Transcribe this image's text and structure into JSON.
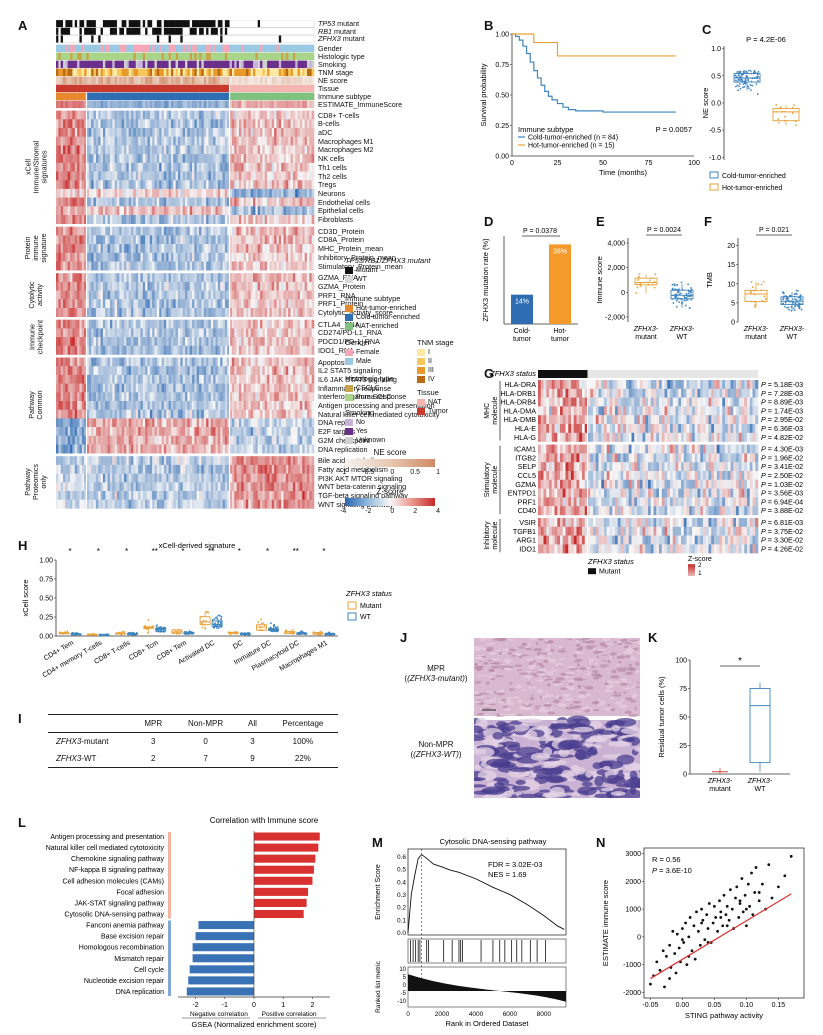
{
  "panels": {
    "A": "A",
    "B": "B",
    "C": "C",
    "D": "D",
    "E": "E",
    "F": "F",
    "G": "G",
    "H": "H",
    "I": "I",
    "J": "J",
    "K": "K",
    "L": "L",
    "M": "M",
    "N": "N"
  },
  "heatmapA": {
    "annotation_rows": [
      "TP53 mutant",
      "RB1 mutant",
      "ZFHX3 mutant",
      "Gender",
      "Histologic type",
      "Smoking",
      "TNM stage",
      "NE score",
      "Tissue",
      "Immune subtype",
      "ESTIMATE_ImmuneScore"
    ],
    "groups": [
      {
        "label": "xCell Immune/Stromal signatures",
        "rows": [
          "CD8+ T-cells",
          "B-cells",
          "aDC",
          "Macrophages M1",
          "Macrophages M2",
          "NK cells",
          "Th1 cells",
          "Th2 cells",
          "Tregs",
          "Neurons",
          "Endothelial cells",
          "Epithelial cells",
          "Fibroblasts"
        ]
      },
      {
        "label": "Protein immune signature",
        "rows": [
          "CD3D_Protein",
          "CD8A_Protein",
          "MHC_Protein_mean",
          "Inhibitory_Protein_mean",
          "Stimulatory_Protein_mean"
        ]
      },
      {
        "label": "Cytolytic activity",
        "rows": [
          "GZMA_RNA",
          "GZMA_Protein",
          "PRF1_RNA",
          "PRF1_Protein",
          "Cytolytic_activity_score"
        ]
      },
      {
        "label": "Immune checkpoint",
        "rows": [
          "CTLA4_RNA",
          "CD274/PD-L1_RNA",
          "PDCD1/PD-1_RNA",
          "IDO1_RNA"
        ]
      },
      {
        "label": "Pathway Common",
        "rows": [
          "Apoptosis",
          "IL2 STAT5 signaling",
          "IL6 JAK STAT3 signaling",
          "Inflammatory response",
          "Interferon gamma response",
          "Antigen processing and presentation",
          "Natural killer cell mediated cytotoxicity",
          "DNA repair",
          "E2F targets",
          "G2M checkpoint",
          "DNA replication"
        ]
      },
      {
        "label": "Pathway Proteomics only",
        "rows": [
          "Bile acid metabolism",
          "Fatty acid metabolism",
          "PI3K AKT MTOR signaling",
          "WNT beta-catenin signaling",
          "TGF-beta signaling pathway",
          "WNT signaling pathway"
        ]
      }
    ],
    "legend": {
      "mut_title": "TP53/RB1/ZFHX3 mutant",
      "mut_items": [
        {
          "label": "Mutant",
          "color": "#111111"
        },
        {
          "label": "WT",
          "color": "#d9d9d9"
        }
      ],
      "immune_title": "Immune subtype",
      "immune_items": [
        {
          "label": "Hot-tumor-enriched",
          "color": "#e8882e"
        },
        {
          "label": "Cold-tumor-enriched",
          "color": "#2f6db3"
        },
        {
          "label": "NAT-enriched",
          "color": "#7fc27f"
        }
      ],
      "gender_title": "Gender",
      "gender_items": [
        {
          "label": "Female",
          "color": "#f4a7b9"
        },
        {
          "label": "Male",
          "color": "#9ac9e3"
        }
      ],
      "tnm_title": "TNM stage",
      "tnm_items": [
        {
          "label": "I",
          "color": "#fde9a3"
        },
        {
          "label": "II",
          "color": "#f8c75a"
        },
        {
          "label": "III",
          "color": "#e79a2a"
        },
        {
          "label": "IV",
          "color": "#b86a14"
        }
      ],
      "hist_title": "Histologic type",
      "hist_items": [
        {
          "label": "CSCLC",
          "color": "#c9a34a"
        },
        {
          "label": "Pure SCLC",
          "color": "#a8d58a"
        }
      ],
      "tissue_title": "Tissue",
      "tissue_items": [
        {
          "label": "NAT",
          "color": "#f4b4b0"
        },
        {
          "label": "Tumor",
          "color": "#c83a2e"
        }
      ],
      "smoking_title": "Smoking",
      "smoking_items": [
        {
          "label": "No",
          "color": "#c7b3d8"
        },
        {
          "label": "Yes",
          "color": "#6a2f8a"
        },
        {
          "label": "Unknown",
          "color": "#cfcfcf"
        }
      ],
      "ne_title": "NE score",
      "ne_ticks": [
        "-1",
        "-0.5",
        "0",
        "0.5",
        "1"
      ],
      "z_title": "Z-score",
      "z_ticks": [
        "-4",
        "-2",
        "0",
        "2",
        "4"
      ]
    }
  },
  "panelB": {
    "ylabel": "Survival probability",
    "xlabel": "Time (months)",
    "yticks": [
      "0.00",
      "0.25",
      "0.50",
      "0.75",
      "1.00"
    ],
    "xticks": [
      "0",
      "25",
      "50",
      "75",
      "100"
    ],
    "legend_title": "Immune subtype",
    "legend": [
      "Cold-tumor-enriched (n = 84)",
      "Hot-tumor-enriched (n = 15)"
    ],
    "pvalue": "P = 0.0057"
  },
  "panelC": {
    "ylabel": "NE score",
    "yticks": [
      "1.0",
      "0.5",
      "0.0",
      "-0.5",
      "-1.0"
    ],
    "pvalue": "P = 4.2E-06",
    "legend": [
      "Cold-tumor-enriched",
      "Hot-tumor-enriched"
    ]
  },
  "panelD": {
    "ylabel": "ZFHX3 mutation rate (%)",
    "pvalue": "P = 0.0378",
    "categories": [
      "Cold-tumor",
      "Hot-tumor"
    ],
    "values": [
      14,
      38
    ],
    "value_labels": [
      "14%",
      "38%"
    ]
  },
  "panelE": {
    "ylabel": "Immune score",
    "yticks": [
      "4,000",
      "2,000",
      "0",
      "-2,000"
    ],
    "pvalue": "P = 0.0024",
    "categories": [
      "ZFHX3-mutant",
      "ZFHX3-WT"
    ]
  },
  "panelF": {
    "ylabel": "TMB",
    "yticks": [
      "20",
      "15",
      "10",
      "5",
      "0"
    ],
    "pvalue": "P = 0.021",
    "categories": [
      "ZFHX3-mutant",
      "ZFHX3-WT"
    ]
  },
  "panelG": {
    "status_label": "ZFHX3 status",
    "groups": [
      {
        "label": "MHC molecule",
        "rows": [
          [
            "HLA-DRA",
            "P = 5.18E-03"
          ],
          [
            "HLA-DRB1",
            "P = 7.28E-03"
          ],
          [
            "HLA-DRB4",
            "P = 8.89E-03"
          ],
          [
            "HLA-DMA",
            "P = 1.74E-03"
          ],
          [
            "HLA-DMB",
            "P = 2.95E-02"
          ],
          [
            "HLA-E",
            "P = 6.36E-03"
          ],
          [
            "HLA-G",
            "P = 4.82E-02"
          ]
        ]
      },
      {
        "label": "Stimulatory molecule",
        "rows": [
          [
            "ICAM1",
            "P = 4.30E-03"
          ],
          [
            "ITGB2",
            "P = 1.96E-02"
          ],
          [
            "SELP",
            "P = 3.41E-02"
          ],
          [
            "CCL5",
            "P = 2.50E-02"
          ],
          [
            "GZMA",
            "P = 1.03E-02"
          ],
          [
            "ENTPD1",
            "P = 3.56E-03"
          ],
          [
            "PRF1",
            "P = 6.94E-04"
          ],
          [
            "CD40",
            "P = 3.88E-02"
          ]
        ]
      },
      {
        "label": "Inhibitory molecule",
        "rows": [
          [
            "VSIR",
            "P = 6.81E-03"
          ],
          [
            "TGFB1",
            "P = 3.75E-02"
          ],
          [
            "ARG1",
            "P = 3.30E-02"
          ],
          [
            "IDO1",
            "P = 4.26E-02"
          ]
        ]
      }
    ],
    "legend_title": "ZFHX3 status",
    "legend": [
      "Mutant",
      "WT"
    ],
    "z_title": "Z-score",
    "z_ticks": [
      "2",
      "1",
      "0",
      "-1",
      "-2"
    ]
  },
  "panelH": {
    "title": "xCell-derived signature",
    "ylabel": "xCell score",
    "yticks": [
      "1.00",
      "0.75",
      "0.50",
      "0.25",
      "0.00"
    ],
    "categories": [
      "CD4+ Tem",
      "CD4+ memory T-cells",
      "CD8+ T-cells",
      "CD8+ Tcm",
      "CD8+ Tem",
      "Activated DC",
      "DC",
      "Immature DC",
      "Plasmacytoid DC",
      "Macrophages M1"
    ],
    "signif": [
      "*",
      "*",
      "*",
      "**",
      "*",
      "**",
      "*",
      "*",
      "**",
      "*"
    ],
    "legend_title": "ZFHX3 status",
    "legend": [
      "Mutant",
      "WT"
    ]
  },
  "panelI": {
    "headers": [
      "",
      "MPR",
      "Non-MPR",
      "All",
      "Percentage"
    ],
    "rows": [
      [
        "ZFHX3-mutant",
        "3",
        "0",
        "3",
        "100%"
      ],
      [
        "ZFHX3-WT",
        "2",
        "7",
        "9",
        "22%"
      ]
    ]
  },
  "panelJ": {
    "labels": [
      "MPR",
      "(ZFHX3-mutant)",
      "Non-MPR",
      "(ZFHX3-WT)"
    ]
  },
  "panelK": {
    "ylabel": "Residual tumor cells (%)",
    "yticks": [
      "100",
      "75",
      "50",
      "25",
      "0"
    ],
    "categories": [
      "ZFHX3-mutant",
      "ZFHX3-WT"
    ],
    "signif": "*"
  },
  "panelL": {
    "title": "Correlation with Immune score",
    "xlabel": "GSEA (Normalized enrichment score)",
    "xticks": [
      "-2",
      "-1",
      "0",
      "1",
      "2"
    ],
    "neg_label": "Negative correlation",
    "pos_label": "Positive correlation"
  },
  "panelM": {
    "title": "Cytosolic DNA-sensing pathway",
    "ylabel_top": "Enrichment Score",
    "ylabel_bottom": "Ranked list metric",
    "xlabel": "Rank in Ordered Dataset",
    "yticks": [
      "0.6",
      "0.5",
      "0.4",
      "0.3",
      "0.2",
      "0.1",
      "0.0"
    ],
    "xticks": [
      "0",
      "2000",
      "4000",
      "6000",
      "8000"
    ],
    "bticks": [
      "10",
      "5",
      "0",
      "-5",
      "-10"
    ],
    "fdr": "FDR = 3.02E-03",
    "nes": "NES = 1.69"
  },
  "panelN": {
    "ylabel": "ESTIMATE immune score",
    "xlabel": "STING pathway activity",
    "yticks": [
      "3000",
      "2000",
      "1000",
      "0",
      "-1000",
      "-2000"
    ],
    "xticks": [
      "-0.05",
      "0.00",
      "0.05",
      "0.10",
      "0.15"
    ],
    "r": "R = 0.56",
    "p": "P = 3.6E-10"
  },
  "chart_data": [
    {
      "type": "line",
      "panel": "B",
      "xlabel": "Time (months)",
      "ylabel": "Survival probability",
      "xlim": [
        0,
        100
      ],
      "ylim": [
        0,
        1
      ],
      "series": [
        {
          "name": "Cold-tumor-enriched (n = 84)",
          "color": "#3f86bf",
          "x": [
            0,
            2,
            4,
            6,
            8,
            10,
            12,
            14,
            16,
            18,
            20,
            22,
            25,
            28,
            31,
            35,
            40,
            50,
            60,
            70,
            80,
            90
          ],
          "y": [
            1.0,
            0.98,
            0.95,
            0.9,
            0.84,
            0.77,
            0.7,
            0.64,
            0.58,
            0.53,
            0.49,
            0.46,
            0.43,
            0.4,
            0.38,
            0.37,
            0.37,
            0.36,
            0.36,
            0.36,
            0.36,
            0.36
          ]
        },
        {
          "name": "Hot-tumor-enriched (n = 15)",
          "color": "#e8a23a",
          "x": [
            0,
            12,
            12,
            25,
            25,
            90
          ],
          "y": [
            1.0,
            1.0,
            0.93,
            0.93,
            0.82,
            0.82
          ]
        }
      ]
    },
    {
      "type": "bar",
      "panel": "D",
      "categories": [
        "Cold-tumor",
        "Hot-tumor"
      ],
      "values": [
        14,
        38
      ],
      "ylabel": "ZFHX3 mutation rate (%)",
      "ylim": [
        0,
        42
      ]
    },
    {
      "type": "bar",
      "panel": "L",
      "title": "Correlation with Immune score",
      "xlabel": "GSEA (Normalized enrichment score)",
      "xlim": [
        -2.6,
        2.6
      ],
      "categories": [
        "Antigen processing and presentation",
        "Natural killer cell mediated cytotoxicity",
        "Chemokine signaling pathway",
        "NF-kappa B signaling pathway",
        "Cell adhesion molecules (CAMs)",
        "Focal adhesion",
        "JAK-STAT signaling pathway",
        "Cytosolic DNA-sensing pathway",
        "Fanconi anemia pathway",
        "Base excision repair",
        "Homologous recombination",
        "Mismatch repair",
        "Cell cycle",
        "Nucleotide excision repair",
        "DNA replication"
      ],
      "values": [
        2.25,
        2.2,
        2.1,
        2.05,
        2.0,
        1.85,
        1.8,
        1.7,
        -1.9,
        -2.0,
        -2.1,
        -2.1,
        -2.2,
        -2.25,
        -2.3
      ]
    },
    {
      "type": "scatter",
      "panel": "N",
      "xlabel": "STING pathway activity",
      "ylabel": "ESTIMATE immune score",
      "xlim": [
        -0.06,
        0.19
      ],
      "ylim": [
        -2200,
        3200
      ],
      "trend": {
        "x": [
          -0.05,
          0.17
        ],
        "y": [
          -1500,
          1550
        ]
      },
      "x": [
        -0.05,
        -0.045,
        -0.04,
        -0.035,
        -0.03,
        -0.028,
        -0.025,
        -0.02,
        -0.018,
        -0.015,
        -0.012,
        -0.01,
        -0.008,
        -0.005,
        -0.003,
        0.0,
        0.002,
        0.005,
        0.007,
        0.01,
        0.012,
        0.015,
        0.018,
        0.02,
        0.022,
        0.025,
        0.028,
        0.03,
        0.032,
        0.035,
        0.038,
        0.04,
        0.042,
        0.045,
        0.048,
        0.05,
        0.052,
        0.055,
        0.058,
        0.06,
        0.063,
        0.065,
        0.068,
        0.07,
        0.073,
        0.075,
        0.078,
        0.08,
        0.083,
        0.085,
        0.088,
        0.09,
        0.093,
        0.095,
        0.098,
        0.1,
        0.103,
        0.105,
        0.108,
        0.11,
        0.113,
        0.115,
        0.12,
        0.125,
        0.13,
        0.135,
        0.14,
        0.15,
        0.16,
        0.17,
        0.0,
        0.03,
        0.06,
        0.09,
        0.12,
        -0.02,
        0.01,
        0.04,
        0.07,
        0.1
      ],
      "y": [
        -1700,
        -1400,
        -900,
        -1200,
        -500,
        -1800,
        -700,
        -300,
        -1100,
        200,
        -600,
        -1300,
        100,
        -400,
        -900,
        300,
        -200,
        500,
        -1000,
        0,
        700,
        -500,
        400,
        -800,
        900,
        200,
        -300,
        1000,
        600,
        -100,
        800,
        300,
        1200,
        -200,
        500,
        1100,
        700,
        200,
        1300,
        900,
        400,
        1500,
        800,
        1100,
        600,
        1700,
        1000,
        300,
        1400,
        1800,
        700,
        1200,
        2100,
        900,
        1500,
        400,
        1900,
        1100,
        2300,
        800,
        1600,
        2500,
        1300,
        1900,
        1000,
        2600,
        1400,
        1800,
        2200,
        2900,
        -100,
        500,
        700,
        1300,
        1600,
        -1500,
        -700,
        -200,
        400,
        1000
      ]
    }
  ]
}
